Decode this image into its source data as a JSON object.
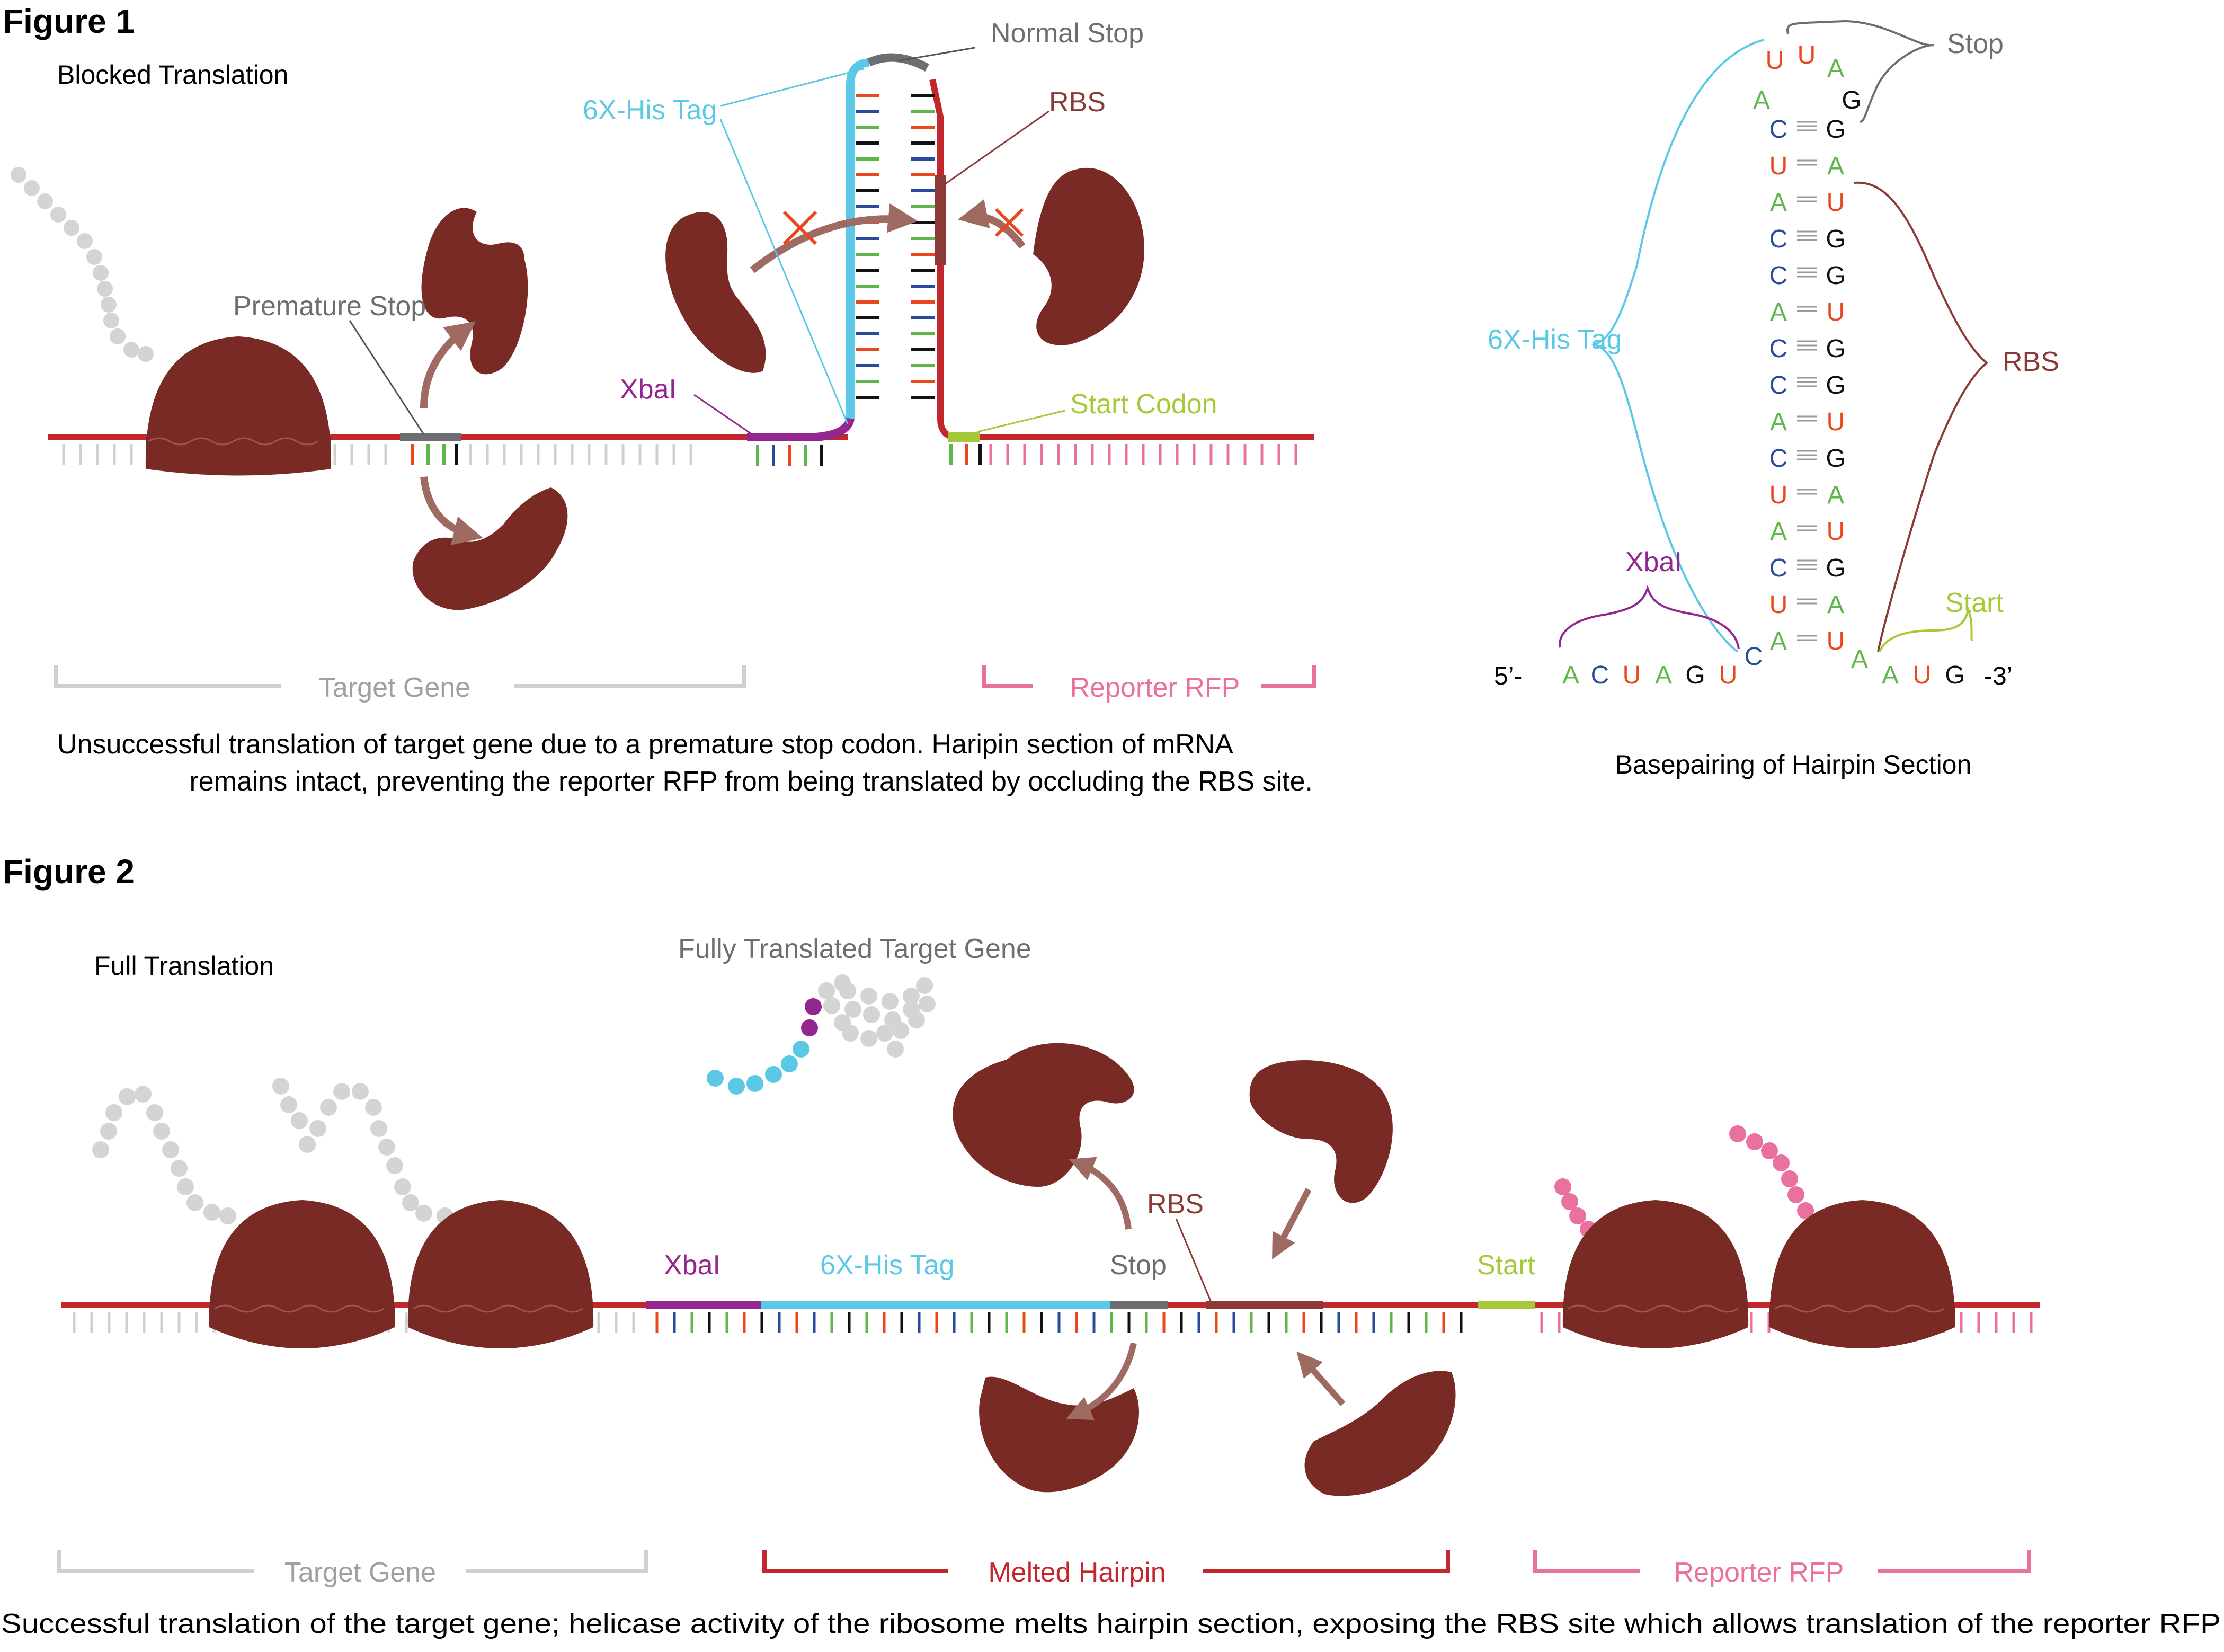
{
  "figure1": {
    "title": "Figure 1",
    "panel_title": "Blocked Translation",
    "labels": {
      "normal_stop": "Normal Stop",
      "his_tag": "6X-His Tag",
      "rbs": "RBS",
      "premature_stop": "Premature Stop",
      "xbal": "XbaI",
      "start_codon": "Start Codon",
      "target_gene": "Target Gene",
      "reporter_rfp": "Reporter RFP"
    },
    "caption_line1": "Unsuccessful translation of target gene due to a premature stop codon.  Haripin section of mRNA",
    "caption_line2": "remains intact, preventing the reporter RFP from being translated by occluding the RBS site."
  },
  "hairpin": {
    "title": "Basepairing of Hairpin Section",
    "labels": {
      "stop": "Stop",
      "his_tag": "6X-His Tag",
      "rbs": "RBS",
      "xbal": "XbaI",
      "start": "Start",
      "five_prime": "5’-",
      "three_prime": "-3’"
    },
    "loop": [
      "A",
      "U",
      "U",
      "A",
      "G"
    ],
    "pairs": [
      [
        "C",
        "G",
        3
      ],
      [
        "U",
        "A",
        2
      ],
      [
        "A",
        "U",
        2
      ],
      [
        "C",
        "G",
        3
      ],
      [
        "C",
        "G",
        3
      ],
      [
        "A",
        "U",
        2
      ],
      [
        "C",
        "G",
        3
      ],
      [
        "C",
        "G",
        3
      ],
      [
        "A",
        "U",
        2
      ],
      [
        "C",
        "G",
        3
      ],
      [
        "U",
        "A",
        2
      ],
      [
        "A",
        "U",
        2
      ],
      [
        "C",
        "G",
        3
      ],
      [
        "U",
        "A",
        2
      ],
      [
        "A",
        "U",
        2
      ]
    ],
    "left_tail": [
      "A",
      "C",
      "U",
      "A",
      "G",
      "U",
      "C"
    ],
    "right_tail": [
      "A",
      "A",
      "U",
      "G"
    ]
  },
  "figure2": {
    "title": "Figure 2",
    "panel_title": "Full Translation",
    "labels": {
      "fully_translated": "Fully Translated Target Gene",
      "xbal": "XbaI",
      "his_tag": "6X-His Tag",
      "stop": "Stop",
      "rbs": "RBS",
      "start": "Start",
      "target_gene": "Target Gene",
      "melted_hairpin": "Melted Hairpin",
      "reporter_rfp": "Reporter RFP"
    },
    "caption": "Successful translation of the target gene; helicase activity of the ribosome melts hairpin section, exposing the RBS site which allows translation of the reporter RFP"
  },
  "colors": {
    "ribosome": "#7a2a24",
    "mrna": "#c1272d",
    "his_tag": "#5bc8e6",
    "xbal": "#93278f",
    "stop": "#6d6e71",
    "rbs": "#8b3a36",
    "start": "#a6c939",
    "rfp": "#e9719f",
    "grey_bead": "#d4d4d4",
    "arrow": "#9e6a62",
    "base_A": "#5fb64a",
    "base_U": "#e8481c",
    "base_C": "#2a4a9b",
    "base_G": "#111111"
  }
}
